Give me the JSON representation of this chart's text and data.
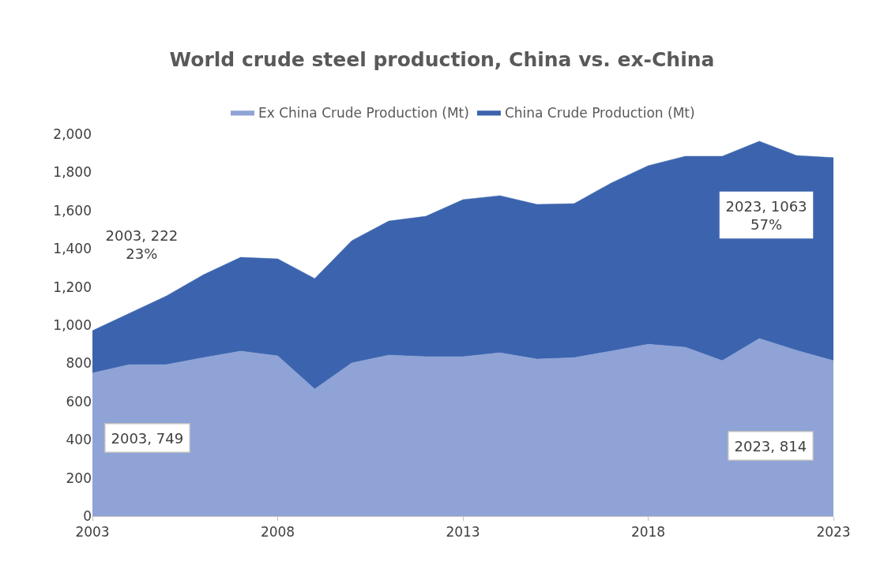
{
  "chart_data": {
    "type": "area",
    "stacked": true,
    "title": "World crude steel production, China vs. ex-China",
    "x": [
      2003,
      2004,
      2005,
      2006,
      2007,
      2008,
      2009,
      2010,
      2011,
      2012,
      2013,
      2014,
      2015,
      2016,
      2017,
      2018,
      2019,
      2020,
      2021,
      2022,
      2023
    ],
    "series": [
      {
        "name": "Ex China Crude Production (Mt)",
        "color": "#8fa3d6",
        "values": [
          749,
          793,
          793,
          830,
          864,
          839,
          665,
          802,
          843,
          835,
          835,
          855,
          822,
          830,
          864,
          900,
          884,
          814,
          930,
          868,
          814
        ]
      },
      {
        "name": "China Crude Production (Mt)",
        "color": "#3c64ae",
        "values": [
          222,
          269,
          360,
          434,
          491,
          508,
          579,
          640,
          702,
          735,
          822,
          823,
          810,
          806,
          880,
          935,
          1000,
          1070,
          1033,
          1020,
          1063
        ]
      }
    ],
    "xlim": [
      2003,
      2023
    ],
    "xticks": [
      2003,
      2008,
      2013,
      2018,
      2023
    ],
    "ylim": [
      0,
      2000
    ],
    "yticks": [
      {
        "value": 0,
        "label": "0"
      },
      {
        "value": 200,
        "label": "200"
      },
      {
        "value": 400,
        "label": "400"
      },
      {
        "value": 600,
        "label": "600"
      },
      {
        "value": 800,
        "label": "800"
      },
      {
        "value": 1000,
        "label": "1,000"
      },
      {
        "value": 1200,
        "label": "1,200"
      },
      {
        "value": 1400,
        "label": "1,400"
      },
      {
        "value": 1600,
        "label": "1,600"
      },
      {
        "value": 1800,
        "label": "1,800"
      },
      {
        "value": 2000,
        "label": "2,000"
      }
    ],
    "legend": "top",
    "annotations": [
      "2003, 222\n23%",
      "2003, 749",
      "2023, 1063\n57%",
      "2023, 814"
    ]
  }
}
